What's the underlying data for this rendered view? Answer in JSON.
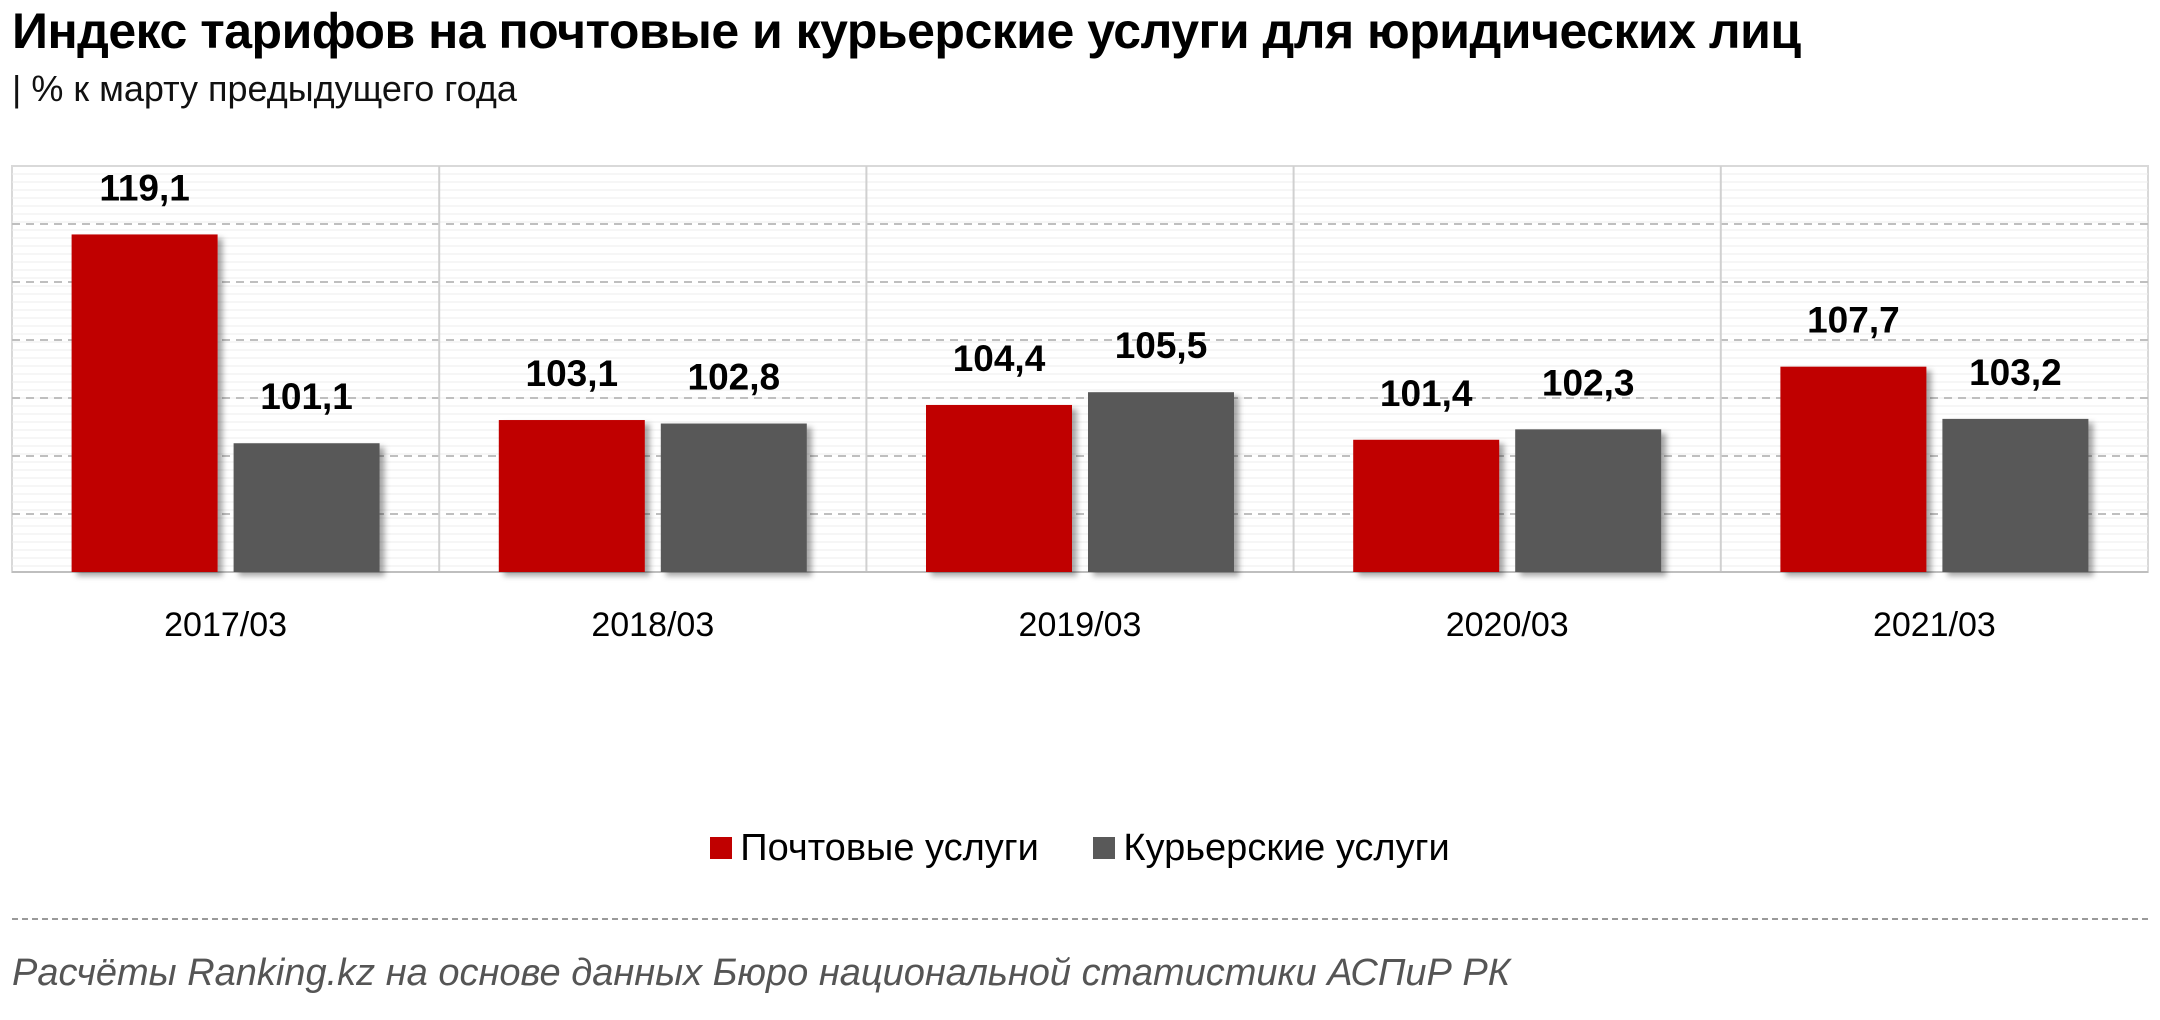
{
  "title": "Индекс тарифов на почтовые и курьерские услуги для юридических лиц",
  "subtitle": "| % к марту предыдущего года",
  "source": "Расчёты Ranking.kz на основе данных Бюро национальной статистики АСПиР РК",
  "chart_data": {
    "type": "bar",
    "categories": [
      "2017/03",
      "2018/03",
      "2019/03",
      "2020/03",
      "2021/03"
    ],
    "series": [
      {
        "name": "Почтовые услуги",
        "values": [
          119.1,
          103.1,
          104.4,
          101.4,
          107.7
        ],
        "labels": [
          "119,1",
          "103,1",
          "104,4",
          "101,4",
          "107,7"
        ],
        "color": "#C00000"
      },
      {
        "name": "Курьерские услуги",
        "values": [
          101.1,
          102.8,
          105.5,
          102.3,
          103.2
        ],
        "labels": [
          "101,1",
          "102,8",
          "105,5",
          "102,3",
          "103,2"
        ],
        "color": "#595959"
      }
    ],
    "ylim": [
      90,
      125
    ],
    "grid": true,
    "legend_position": "bottom"
  }
}
